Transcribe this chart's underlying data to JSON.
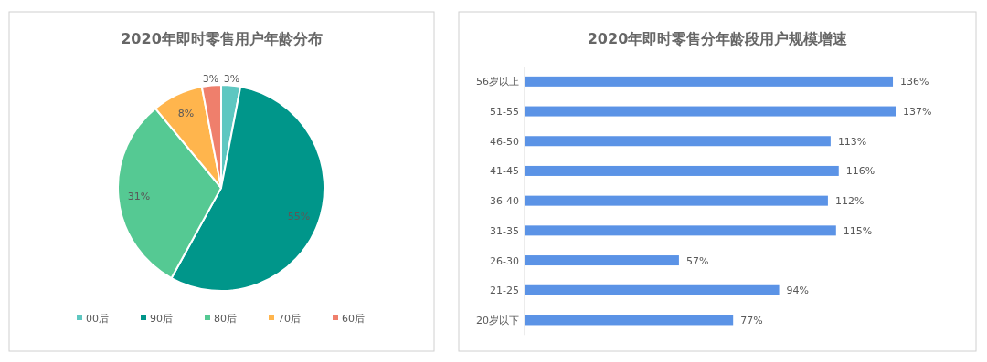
{
  "chart_data": [
    {
      "type": "pie",
      "title": "2020年即时零售用户年龄分布",
      "categories": [
        "00后",
        "90后",
        "80后",
        "70后",
        "60后"
      ],
      "values": [
        3,
        55,
        31,
        8,
        3
      ],
      "colors": [
        "#5ec7c1",
        "#00968a",
        "#55c993",
        "#ffb54d",
        "#ef7f6c"
      ],
      "value_labels": [
        "3%",
        "55%",
        "31%",
        "8%",
        "3%"
      ],
      "legend": "bottom"
    },
    {
      "type": "bar",
      "orientation": "horizontal",
      "title": "2020年即时零售分年龄段用户规模增速",
      "categories": [
        "56岁以上",
        "51-55",
        "46-50",
        "41-45",
        "36-40",
        "31-35",
        "26-30",
        "21-25",
        "20岁以下"
      ],
      "values": [
        136,
        137,
        113,
        116,
        112,
        115,
        57,
        94,
        77
      ],
      "color": "#5b93e6",
      "value_labels": [
        "136%",
        "137%",
        "113%",
        "116%",
        "112%",
        "115%",
        "57%",
        "94%",
        "77%"
      ]
    }
  ]
}
